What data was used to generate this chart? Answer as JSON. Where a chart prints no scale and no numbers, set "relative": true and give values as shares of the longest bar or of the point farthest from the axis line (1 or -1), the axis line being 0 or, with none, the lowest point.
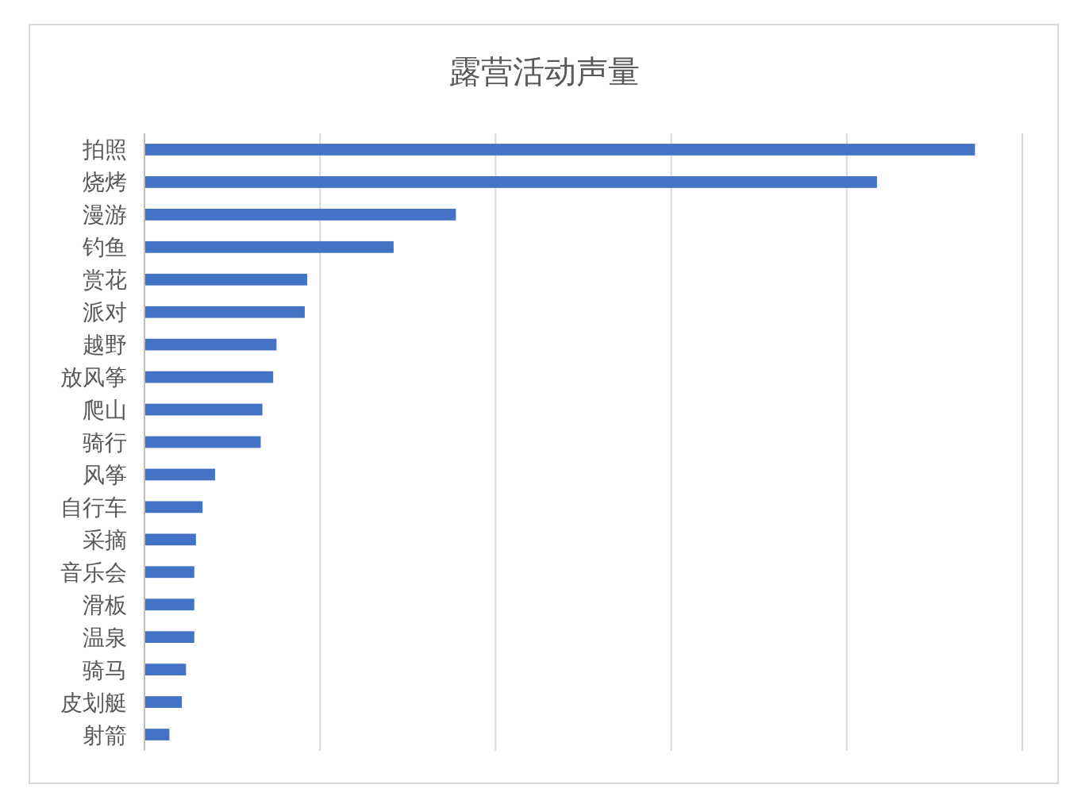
{
  "chart_data": {
    "type": "bar",
    "title": "露营活动声量",
    "orientation": "horizontal",
    "relative": true,
    "grid": "x",
    "color": "#4472c4",
    "categories": [
      "拍照",
      "烧烤",
      "漫游",
      "钓鱼",
      "赏花",
      "派对",
      "越野",
      "放风筝",
      "爬山",
      "骑行",
      "风筝",
      "自行车",
      "采摘",
      "音乐会",
      "滑板",
      "温泉",
      "骑马",
      "皮划艇",
      "射箭"
    ],
    "values": [
      1,
      0.882,
      0.375,
      0.3,
      0.196,
      0.193,
      0.159,
      0.155,
      0.142,
      0.14,
      0.085,
      0.07,
      0.062,
      0.06,
      0.06,
      0.06,
      0.05,
      0.045,
      0.03
    ]
  }
}
